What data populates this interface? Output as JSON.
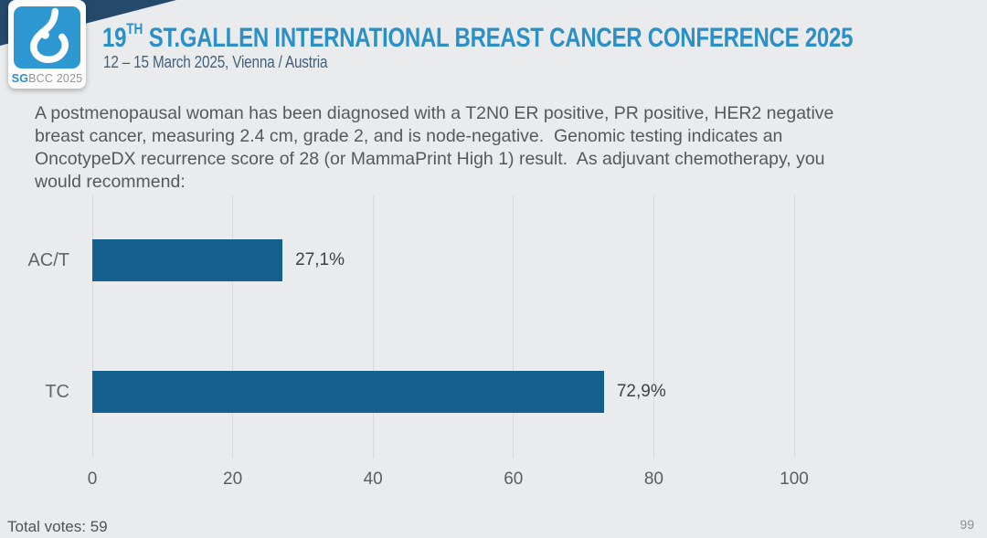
{
  "header": {
    "logo": {
      "sg": "SG",
      "rest": "BCC 2025",
      "glyph": "breast-drop-icon"
    },
    "title_num": "19",
    "title_sup": "TH",
    "title_rest": " ST.GALLEN INTERNATIONAL BREAST CANCER CONFERENCE 2025",
    "subtitle": "12 – 15 March 2025, Vienna / Austria"
  },
  "question": {
    "lines": [
      "A postmenopausal woman has been diagnosed with a T2N0 ER positive, PR positive, HER2 negative",
      "breast cancer, measuring 2.4 cm, grade 2, and is node-negative.  Genomic testing indicates an",
      "OncotypeDX recurrence score of 28 (or MammaPrint High 1) result.  As adjuvant chemotherapy, you",
      "would recommend:"
    ]
  },
  "chart_data": {
    "type": "bar",
    "orientation": "horizontal",
    "title": "",
    "xlabel": "",
    "ylabel": "",
    "categories": [
      "AC/T",
      "TC"
    ],
    "values": [
      27.1,
      72.9
    ],
    "value_labels": [
      "27,1%",
      "72,9%"
    ],
    "x_ticks": [
      0,
      20,
      40,
      60,
      80,
      100
    ],
    "xlim": [
      0,
      100
    ],
    "grid": "vertical-only",
    "legend": "none",
    "bar_color": "#14608e",
    "total_votes": 59
  },
  "footer": {
    "total_votes": "Total votes: 59",
    "page_number": "99"
  },
  "colors": {
    "slide_background": "#eaebec",
    "navy_wedge": "#25496b",
    "logo_blue": "#2e98d3",
    "title_blue": "#2b90c6",
    "subtitle_blue_gray": "#41607b",
    "question_gray": "#57585a",
    "bar_blue": "#14608e",
    "gridline_gray": "#d8d9da"
  }
}
